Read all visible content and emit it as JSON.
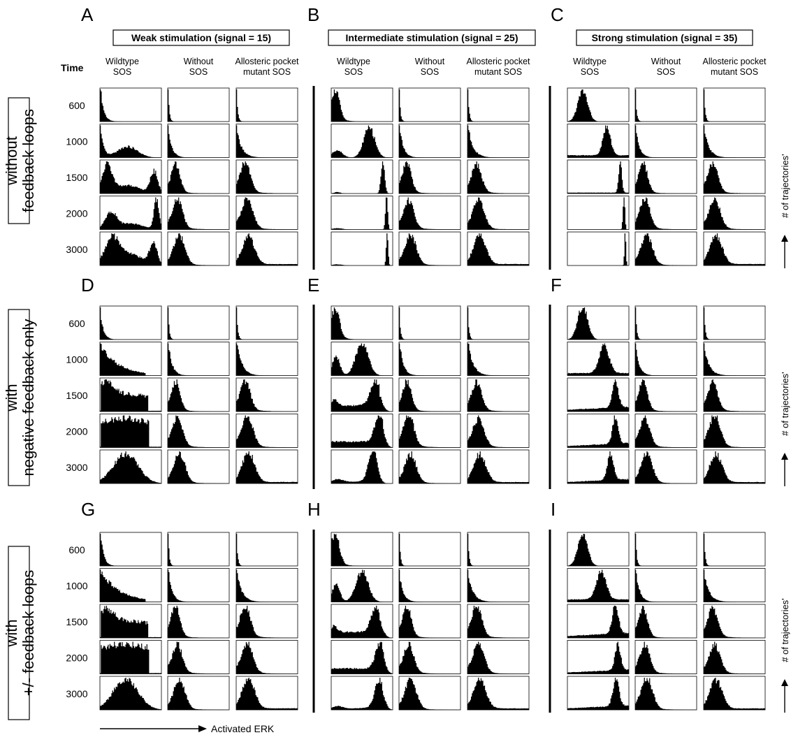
{
  "figure": {
    "panels": [
      "A",
      "B",
      "C",
      "D",
      "E",
      "F",
      "G",
      "H",
      "I"
    ],
    "conditions": [
      "Weak stimulation (signal = 15)",
      "Intermediate stimulation (signal = 25)",
      "Strong stimulation (signal = 35)"
    ],
    "column_headers": [
      [
        "Wildtype",
        "SOS"
      ],
      [
        "Without",
        "SOS"
      ],
      [
        "Allosteric pocket",
        "mutant SOS"
      ]
    ],
    "time_header": "Time",
    "times": [
      "600",
      "1000",
      "1500",
      "2000",
      "3000"
    ],
    "row_labels": [
      [
        "without",
        "feedback loops"
      ],
      [
        "with",
        "negative feedback only"
      ],
      [
        "with",
        "+/- feedback loops"
      ]
    ],
    "y_axis_label": "# of trajectories'",
    "x_axis_label": "Activated ERK"
  },
  "chart_data": {
    "type": "histogram-grid",
    "note_rows": "rows = feedback setting x time; cols = stimulation x SOS variant",
    "x_axis_label": "Activated ERK",
    "y_axis_label": "# of trajectories'",
    "distribution_shapes": {
      "wildtype": {
        "weak": {
          "without feedback loops": [
            "decay",
            "decay+bump 0.45",
            "bimodal low+0.88",
            "bimodal low+0.92",
            "bimodal low+0.88"
          ],
          "with negative feedback only": [
            "decay",
            "decay broad",
            "plateau 0.1-0.7",
            "plateau 0.1-0.75",
            "hump 0.4"
          ],
          "with +/- feedback loops": [
            "decay",
            "decay broad",
            "plateau 0.1-0.75",
            "plateau 0.1-0.8",
            "hump 0.45"
          ]
        },
        "intermediate": {
          "without feedback loops": [
            "low hump 0.1",
            "peak 0.6",
            "sharp peak 0.82",
            "sharp peak 0.89",
            "sharp peak 0.9"
          ],
          "with negative feedback only": [
            "low hump 0.1",
            "peak 0.5",
            "peak 0.7",
            "peak 0.77",
            "peak 0.68"
          ],
          "with +/- feedback loops": [
            "low hump 0.1",
            "peak 0.5",
            "peak 0.72",
            "peak 0.78",
            "peak 0.78"
          ]
        },
        "strong": {
          "without feedback loops": [
            "hump 0.25",
            "peak 0.62",
            "sharp peak 0.85",
            "sharp peak 0.92",
            "sharp peak 0.94"
          ],
          "with negative feedback only": [
            "hump 0.25",
            "peak 0.6",
            "peak 0.78",
            "peak 0.78",
            "peak 0.68"
          ],
          "with +/- feedback loops": [
            "hump 0.25",
            "peak 0.55",
            "peak 0.78",
            "peak 0.82",
            "peak 0.78"
          ]
        }
      },
      "without_sos": [
        "spike at 0",
        "decay",
        "hump 0.12",
        "hump 0.17",
        "hump 0.2"
      ],
      "allosteric_pocket_mutant_sos": [
        "spike at 0",
        "decay",
        "hump 0.15",
        "hump 0.18",
        "hump 0.2"
      ]
    }
  }
}
